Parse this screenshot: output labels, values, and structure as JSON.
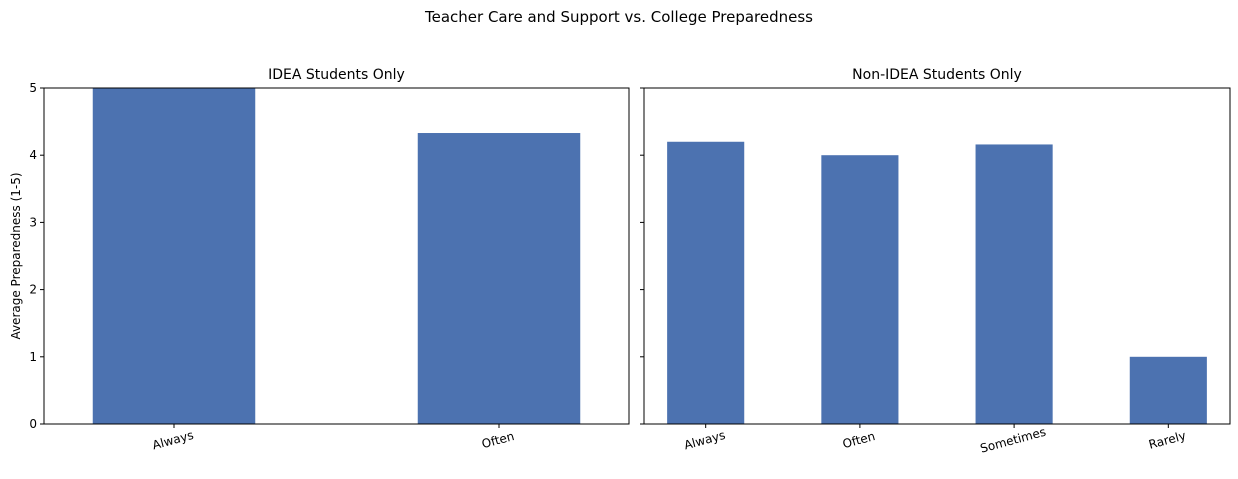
{
  "figure": {
    "suptitle": "Teacher Care and Support vs. College Preparedness"
  },
  "colors": {
    "bar": "#4c72b0"
  },
  "chart_data": [
    {
      "type": "bar",
      "title": "IDEA Students Only",
      "ylabel": "Average Preparedness (1-5)",
      "xlabel": "",
      "categories": [
        "Always",
        "Often"
      ],
      "values": [
        5.0,
        4.33
      ],
      "ylim": [
        0,
        5
      ],
      "yticks": [
        "0",
        "1",
        "2",
        "3",
        "4",
        "5"
      ],
      "grid": false,
      "legend": "none"
    },
    {
      "type": "bar",
      "title": "Non-IDEA Students Only",
      "ylabel": "",
      "xlabel": "",
      "categories": [
        "Always",
        "Often",
        "Sometimes",
        "Rarely"
      ],
      "values": [
        4.2,
        4.0,
        4.16,
        1.0
      ],
      "ylim": [
        0,
        5
      ],
      "yticks": [
        "0",
        "1",
        "2",
        "3",
        "4",
        "5"
      ],
      "grid": false,
      "legend": "none"
    }
  ]
}
